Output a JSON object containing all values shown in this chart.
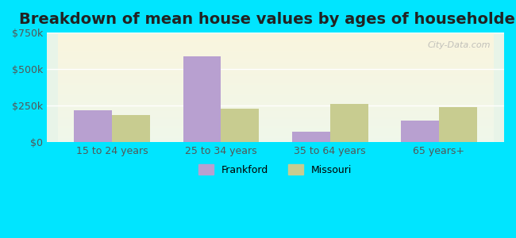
{
  "title": "Breakdown of mean house values by ages of householders",
  "categories": [
    "15 to 24 years",
    "25 to 34 years",
    "35 to 64 years",
    "65 years+"
  ],
  "frankford_values": [
    220000,
    590000,
    75000,
    150000
  ],
  "missouri_values": [
    185000,
    230000,
    265000,
    240000
  ],
  "frankford_color": "#b8a0d0",
  "missouri_color": "#c8cc90",
  "ylim": [
    0,
    750000
  ],
  "yticks": [
    0,
    250000,
    500000,
    750000
  ],
  "ytick_labels": [
    "$0",
    "$250k",
    "$500k",
    "$750k"
  ],
  "bar_width": 0.35,
  "background_color_top": "#e8f5e8",
  "background_color_bottom": "#f0f8e8",
  "outer_background": "#00e5ff",
  "title_fontsize": 14,
  "watermark": "City-Data.com"
}
